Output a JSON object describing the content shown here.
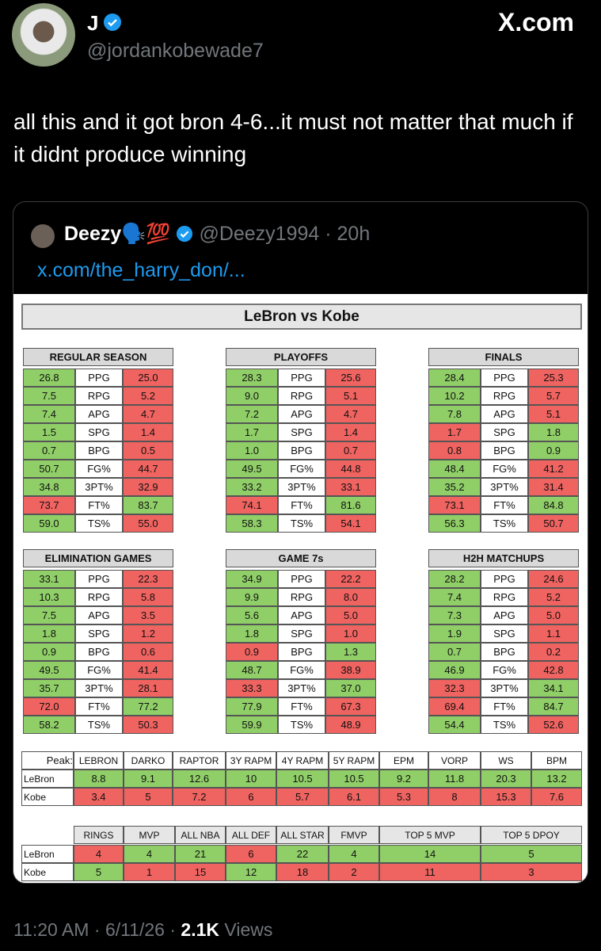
{
  "header": {
    "name": "J",
    "handle": "@jordankobewade7",
    "site": "X.com"
  },
  "tweet": {
    "text": "all this and it got bron 4-6...it must not matter that much if it didnt produce winning"
  },
  "quote": {
    "name": "Deezy",
    "emoji": "🗣️💯",
    "handle": "@Deezy1994",
    "separator": "·",
    "time": "20h",
    "link": "x.com/the_harry_don/..."
  },
  "image": {
    "title": "LeBron vs Kobe",
    "palette": {
      "g": "#90cf68",
      "r": "#ef6360"
    },
    "stat_tables": [
      {
        "title": "REGULAR SEASON",
        "rows": [
          {
            "l": "26.8",
            "s": "PPG",
            "k": "25.0",
            "c": [
              "g",
              "r"
            ]
          },
          {
            "l": "7.5",
            "s": "RPG",
            "k": "5.2",
            "c": [
              "g",
              "r"
            ]
          },
          {
            "l": "7.4",
            "s": "APG",
            "k": "4.7",
            "c": [
              "g",
              "r"
            ]
          },
          {
            "l": "1.5",
            "s": "SPG",
            "k": "1.4",
            "c": [
              "g",
              "r"
            ]
          },
          {
            "l": "0.7",
            "s": "BPG",
            "k": "0.5",
            "c": [
              "g",
              "r"
            ]
          },
          {
            "l": "50.7",
            "s": "FG%",
            "k": "44.7",
            "c": [
              "g",
              "r"
            ]
          },
          {
            "l": "34.8",
            "s": "3PT%",
            "k": "32.9",
            "c": [
              "g",
              "r"
            ]
          },
          {
            "l": "73.7",
            "s": "FT%",
            "k": "83.7",
            "c": [
              "r",
              "g"
            ]
          },
          {
            "l": "59.0",
            "s": "TS%",
            "k": "55.0",
            "c": [
              "g",
              "r"
            ]
          }
        ]
      },
      {
        "title": "PLAYOFFS",
        "rows": [
          {
            "l": "28.3",
            "s": "PPG",
            "k": "25.6",
            "c": [
              "g",
              "r"
            ]
          },
          {
            "l": "9.0",
            "s": "RPG",
            "k": "5.1",
            "c": [
              "g",
              "r"
            ]
          },
          {
            "l": "7.2",
            "s": "APG",
            "k": "4.7",
            "c": [
              "g",
              "r"
            ]
          },
          {
            "l": "1.7",
            "s": "SPG",
            "k": "1.4",
            "c": [
              "g",
              "r"
            ]
          },
          {
            "l": "1.0",
            "s": "BPG",
            "k": "0.7",
            "c": [
              "g",
              "r"
            ]
          },
          {
            "l": "49.5",
            "s": "FG%",
            "k": "44.8",
            "c": [
              "g",
              "r"
            ]
          },
          {
            "l": "33.2",
            "s": "3PT%",
            "k": "33.1",
            "c": [
              "g",
              "r"
            ]
          },
          {
            "l": "74.1",
            "s": "FT%",
            "k": "81.6",
            "c": [
              "r",
              "g"
            ]
          },
          {
            "l": "58.3",
            "s": "TS%",
            "k": "54.1",
            "c": [
              "g",
              "r"
            ]
          }
        ]
      },
      {
        "title": "FINALS",
        "rows": [
          {
            "l": "28.4",
            "s": "PPG",
            "k": "25.3",
            "c": [
              "g",
              "r"
            ]
          },
          {
            "l": "10.2",
            "s": "RPG",
            "k": "5.7",
            "c": [
              "g",
              "r"
            ]
          },
          {
            "l": "7.8",
            "s": "APG",
            "k": "5.1",
            "c": [
              "g",
              "r"
            ]
          },
          {
            "l": "1.7",
            "s": "SPG",
            "k": "1.8",
            "c": [
              "r",
              "g"
            ]
          },
          {
            "l": "0.8",
            "s": "BPG",
            "k": "0.9",
            "c": [
              "r",
              "g"
            ]
          },
          {
            "l": "48.4",
            "s": "FG%",
            "k": "41.2",
            "c": [
              "g",
              "r"
            ]
          },
          {
            "l": "35.2",
            "s": "3PT%",
            "k": "31.4",
            "c": [
              "g",
              "r"
            ]
          },
          {
            "l": "73.1",
            "s": "FT%",
            "k": "84.8",
            "c": [
              "r",
              "g"
            ]
          },
          {
            "l": "56.3",
            "s": "TS%",
            "k": "50.7",
            "c": [
              "g",
              "r"
            ]
          }
        ]
      },
      {
        "title": "ELIMINATION GAMES",
        "rows": [
          {
            "l": "33.1",
            "s": "PPG",
            "k": "22.3",
            "c": [
              "g",
              "r"
            ]
          },
          {
            "l": "10.3",
            "s": "RPG",
            "k": "5.8",
            "c": [
              "g",
              "r"
            ]
          },
          {
            "l": "7.5",
            "s": "APG",
            "k": "3.5",
            "c": [
              "g",
              "r"
            ]
          },
          {
            "l": "1.8",
            "s": "SPG",
            "k": "1.2",
            "c": [
              "g",
              "r"
            ]
          },
          {
            "l": "0.9",
            "s": "BPG",
            "k": "0.6",
            "c": [
              "g",
              "r"
            ]
          },
          {
            "l": "49.5",
            "s": "FG%",
            "k": "41.4",
            "c": [
              "g",
              "r"
            ]
          },
          {
            "l": "35.7",
            "s": "3PT%",
            "k": "28.1",
            "c": [
              "g",
              "r"
            ]
          },
          {
            "l": "72.0",
            "s": "FT%",
            "k": "77.2",
            "c": [
              "r",
              "g"
            ]
          },
          {
            "l": "58.2",
            "s": "TS%",
            "k": "50.3",
            "c": [
              "g",
              "r"
            ]
          }
        ]
      },
      {
        "title": "GAME 7s",
        "rows": [
          {
            "l": "34.9",
            "s": "PPG",
            "k": "22.2",
            "c": [
              "g",
              "r"
            ]
          },
          {
            "l": "9.9",
            "s": "RPG",
            "k": "8.0",
            "c": [
              "g",
              "r"
            ]
          },
          {
            "l": "5.6",
            "s": "APG",
            "k": "5.0",
            "c": [
              "g",
              "r"
            ]
          },
          {
            "l": "1.8",
            "s": "SPG",
            "k": "1.0",
            "c": [
              "g",
              "r"
            ]
          },
          {
            "l": "0.9",
            "s": "BPG",
            "k": "1.3",
            "c": [
              "r",
              "g"
            ]
          },
          {
            "l": "48.7",
            "s": "FG%",
            "k": "38.9",
            "c": [
              "g",
              "r"
            ]
          },
          {
            "l": "33.3",
            "s": "3PT%",
            "k": "37.0",
            "c": [
              "r",
              "g"
            ]
          },
          {
            "l": "77.9",
            "s": "FT%",
            "k": "67.3",
            "c": [
              "g",
              "r"
            ]
          },
          {
            "l": "59.9",
            "s": "TS%",
            "k": "48.9",
            "c": [
              "g",
              "r"
            ]
          }
        ]
      },
      {
        "title": "H2H MATCHUPS",
        "rows": [
          {
            "l": "28.2",
            "s": "PPG",
            "k": "24.6",
            "c": [
              "g",
              "r"
            ]
          },
          {
            "l": "7.4",
            "s": "RPG",
            "k": "5.2",
            "c": [
              "g",
              "r"
            ]
          },
          {
            "l": "7.3",
            "s": "APG",
            "k": "5.0",
            "c": [
              "g",
              "r"
            ]
          },
          {
            "l": "1.9",
            "s": "SPG",
            "k": "1.1",
            "c": [
              "g",
              "r"
            ]
          },
          {
            "l": "0.7",
            "s": "BPG",
            "k": "0.2",
            "c": [
              "g",
              "r"
            ]
          },
          {
            "l": "46.9",
            "s": "FG%",
            "k": "42.8",
            "c": [
              "g",
              "r"
            ]
          },
          {
            "l": "32.3",
            "s": "3PT%",
            "k": "34.1",
            "c": [
              "r",
              "g"
            ]
          },
          {
            "l": "69.4",
            "s": "FT%",
            "k": "84.7",
            "c": [
              "r",
              "g"
            ]
          },
          {
            "l": "54.4",
            "s": "TS%",
            "k": "52.6",
            "c": [
              "g",
              "r"
            ]
          }
        ]
      }
    ],
    "peak_table": {
      "corner": "Peak:",
      "headers": [
        "LEBRON",
        "DARKO",
        "RAPTOR",
        "3Y RAPM",
        "4Y RAPM",
        "5Y RAPM",
        "EPM",
        "VORP",
        "WS",
        "BPM"
      ],
      "rows": [
        {
          "label": "LeBron",
          "values": [
            "8.8",
            "9.1",
            "12.6",
            "10",
            "10.5",
            "10.5",
            "9.2",
            "11.8",
            "20.3",
            "13.2"
          ],
          "colors": [
            "g",
            "g",
            "g",
            "g",
            "g",
            "g",
            "g",
            "g",
            "g",
            "g"
          ]
        },
        {
          "label": "Kobe",
          "values": [
            "3.4",
            "5",
            "7.2",
            "6",
            "5.7",
            "6.1",
            "5.3",
            "8",
            "15.3",
            "7.6"
          ],
          "colors": [
            "r",
            "r",
            "r",
            "r",
            "r",
            "r",
            "r",
            "r",
            "r",
            "r"
          ]
        }
      ]
    },
    "accolades_table": {
      "headers": [
        "RINGS",
        "MVP",
        "ALL NBA",
        "ALL DEF",
        "ALL STAR",
        "FMVP",
        "TOP 5 MVP",
        "TOP 5 DPOY"
      ],
      "rows": [
        {
          "label": "LeBron",
          "values": [
            "4",
            "4",
            "21",
            "6",
            "22",
            "4",
            "14",
            "5"
          ],
          "colors": [
            "r",
            "g",
            "g",
            "r",
            "g",
            "g",
            "g",
            "g"
          ]
        },
        {
          "label": "Kobe",
          "values": [
            "5",
            "1",
            "15",
            "12",
            "18",
            "2",
            "11",
            "3"
          ],
          "colors": [
            "g",
            "r",
            "r",
            "g",
            "r",
            "r",
            "r",
            "r"
          ]
        }
      ]
    }
  },
  "footer": {
    "time": "11:20 AM",
    "separator": "·",
    "date": "6/11/26",
    "views": "2.1K",
    "views_label": "Views"
  }
}
